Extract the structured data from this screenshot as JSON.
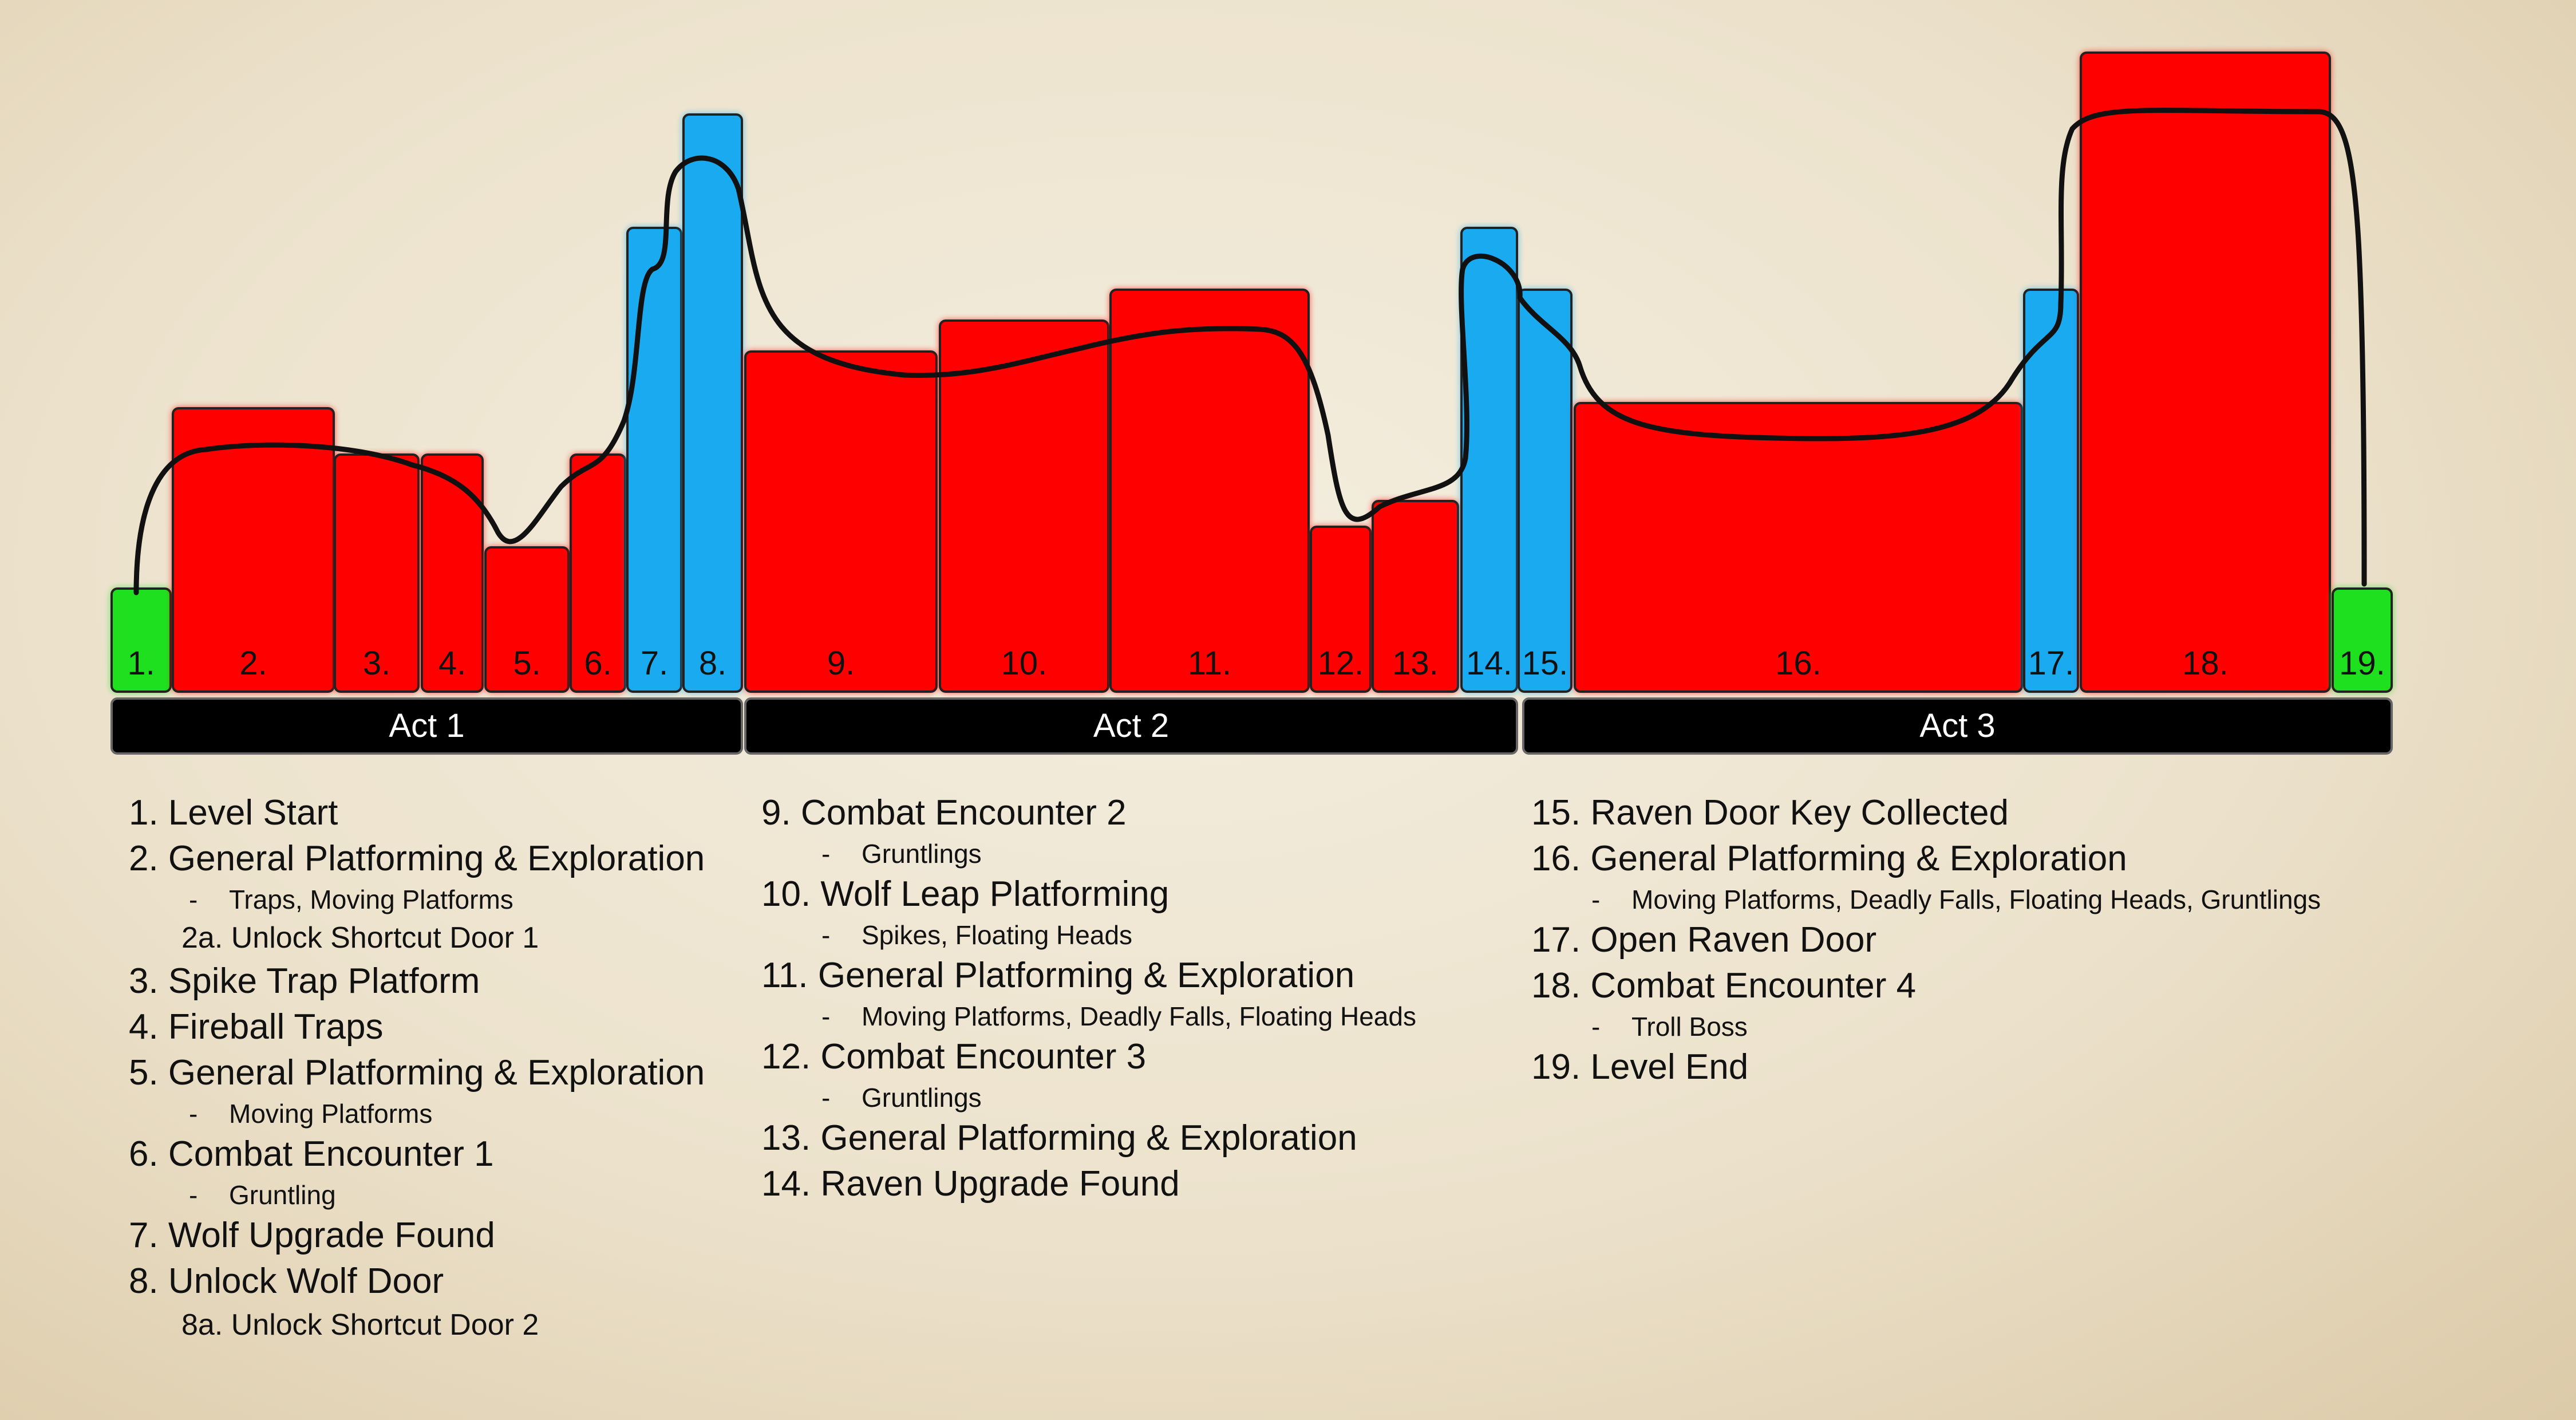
{
  "colors": {
    "combat": "#ff0000",
    "upgrade": "#1aaaf0",
    "startend": "#1ee01e",
    "act_bar": "#000000",
    "pacing_line": "#111111"
  },
  "chart_data": {
    "type": "bar",
    "title": "",
    "xlabel": "",
    "ylabel": "",
    "ylim": [
      0,
      10
    ],
    "beats": [
      {
        "label": "1.",
        "intensity": 1.0,
        "kind": "startend"
      },
      {
        "label": "2.",
        "intensity": 2.75,
        "kind": "combat"
      },
      {
        "label": "3.",
        "intensity": 2.3,
        "kind": "combat"
      },
      {
        "label": "4.",
        "intensity": 2.3,
        "kind": "combat"
      },
      {
        "label": "5.",
        "intensity": 1.4,
        "kind": "combat"
      },
      {
        "label": "6.",
        "intensity": 2.3,
        "kind": "combat"
      },
      {
        "label": "7.",
        "intensity": 4.5,
        "kind": "upgrade"
      },
      {
        "label": "8.",
        "intensity": 5.6,
        "kind": "upgrade"
      },
      {
        "label": "9.",
        "intensity": 3.3,
        "kind": "combat"
      },
      {
        "label": "10.",
        "intensity": 3.6,
        "kind": "combat"
      },
      {
        "label": "11.",
        "intensity": 3.9,
        "kind": "combat"
      },
      {
        "label": "12.",
        "intensity": 1.6,
        "kind": "combat"
      },
      {
        "label": "13.",
        "intensity": 1.85,
        "kind": "combat"
      },
      {
        "label": "14.",
        "intensity": 4.5,
        "kind": "upgrade"
      },
      {
        "label": "15.",
        "intensity": 3.9,
        "kind": "upgrade"
      },
      {
        "label": "16.",
        "intensity": 2.8,
        "kind": "combat"
      },
      {
        "label": "17.",
        "intensity": 3.9,
        "kind": "upgrade"
      },
      {
        "label": "18.",
        "intensity": 6.2,
        "kind": "combat"
      },
      {
        "label": "19.",
        "intensity": 1.0,
        "kind": "startend"
      }
    ],
    "acts": [
      "Act 1",
      "Act 2",
      "Act 3"
    ]
  },
  "legend": {
    "col1": {
      "b1": "1. Level Start",
      "b2": "2. General Platforming & Exploration",
      "b2_sub": "Traps, Moving Platforms",
      "b2a": "2a. Unlock Shortcut Door 1",
      "b3": "3. Spike Trap Platform",
      "b4": "4. Fireball Traps",
      "b5": "5. General Platforming & Exploration",
      "b5_sub": "Moving Platforms",
      "b6": "6.  Combat Encounter 1",
      "b6_sub": "Gruntling",
      "b7": "7. Wolf Upgrade Found",
      "b8": "8. Unlock Wolf Door",
      "b8a": "8a. Unlock Shortcut Door 2"
    },
    "col2": {
      "b9": "9. Combat Encounter 2",
      "b9_sub": "Gruntlings",
      "b10": "10. Wolf Leap Platforming",
      "b10_sub": "Spikes, Floating Heads",
      "b11": "11. General Platforming & Exploration",
      "b11_sub": "Moving Platforms, Deadly Falls, Floating Heads",
      "b12": "12. Combat Encounter 3",
      "b12_sub": "Gruntlings",
      "b13": "13. General Platforming & Exploration",
      "b14": "14. Raven Upgrade Found"
    },
    "col3": {
      "b15": "15. Raven Door Key Collected",
      "b16": "16. General Platforming & Exploration",
      "b16_sub": "Moving Platforms, Deadly Falls, Floating Heads, Gruntlings",
      "b17": "17. Open Raven Door",
      "b18": "18. Combat Encounter 4",
      "b18_sub": "Troll Boss",
      "b19": "19. Level End"
    },
    "dash": "-"
  }
}
